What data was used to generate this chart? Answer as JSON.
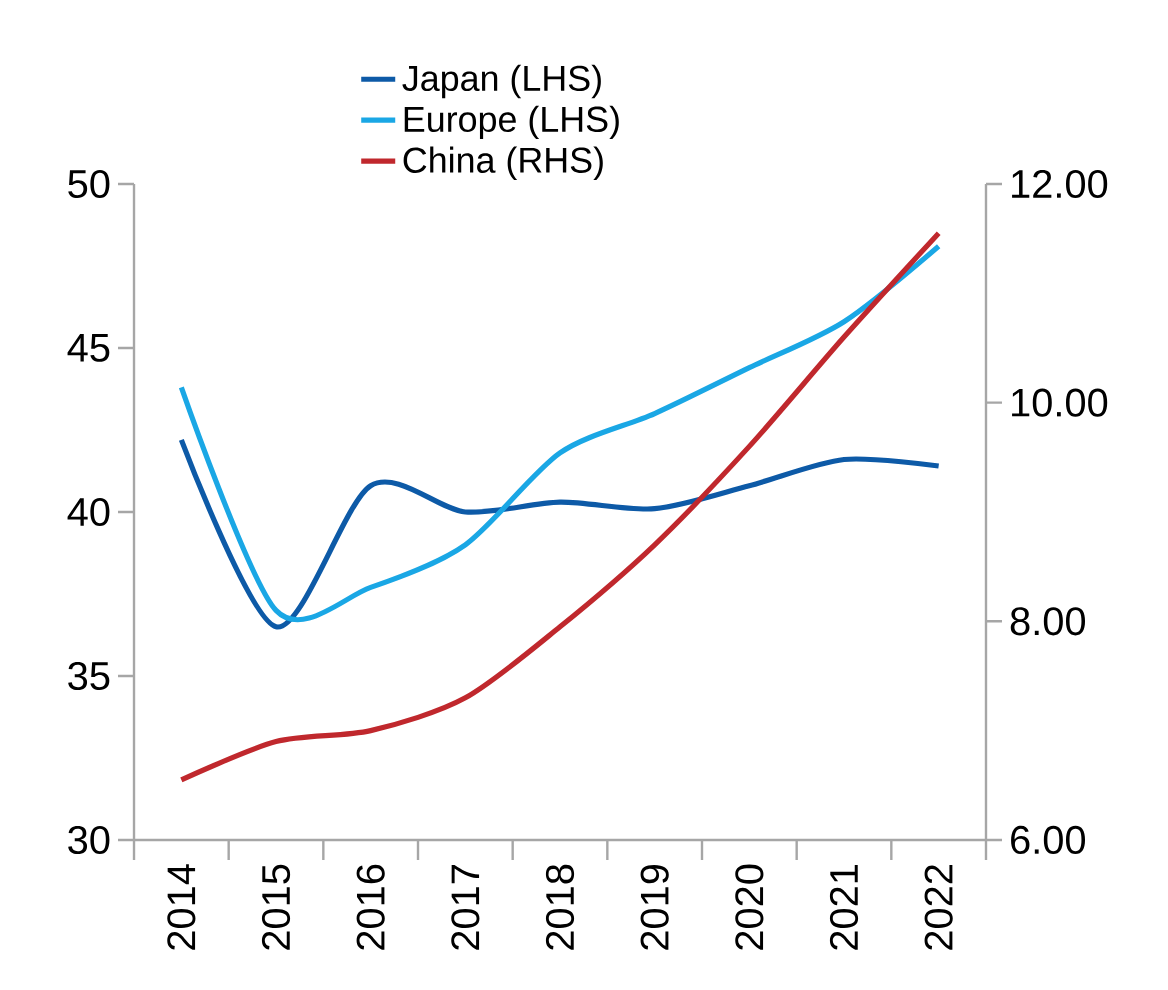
{
  "chart_data": {
    "type": "line",
    "categories": [
      "2014",
      "2015",
      "2016",
      "2017",
      "2018",
      "2019",
      "2020",
      "2021",
      "2022"
    ],
    "series": [
      {
        "name": "Japan (LHS)",
        "color": "#0d5aa7",
        "values": [
          42.2,
          36.5,
          40.8,
          40.0,
          40.3,
          40.1,
          40.8,
          41.6,
          41.4
        ]
      },
      {
        "name": "Europe (LHS)",
        "color": "#1aa7e5",
        "values": [
          43.8,
          37.0,
          37.7,
          39.0,
          41.8,
          43.0,
          44.4,
          45.8,
          48.1
        ]
      },
      {
        "name": "China (RHS)",
        "color": "#c0282d",
        "axis": "y2",
        "values": [
          6.55,
          6.9,
          7.0,
          7.3,
          7.95,
          8.7,
          9.6,
          10.6,
          11.55
        ]
      }
    ],
    "ylim": [
      30,
      50
    ],
    "yticks": [
      30,
      35,
      40,
      45,
      50
    ],
    "y2lim": [
      6,
      12
    ],
    "y2ticks": [
      {
        "value": 6,
        "label": "6.00"
      },
      {
        "value": 8,
        "label": "8.00"
      },
      {
        "value": 10,
        "label": "10.00"
      },
      {
        "value": 12,
        "label": "12.00"
      }
    ],
    "legend": "top",
    "grid": false,
    "marker": "none",
    "line_style": "solid"
  }
}
